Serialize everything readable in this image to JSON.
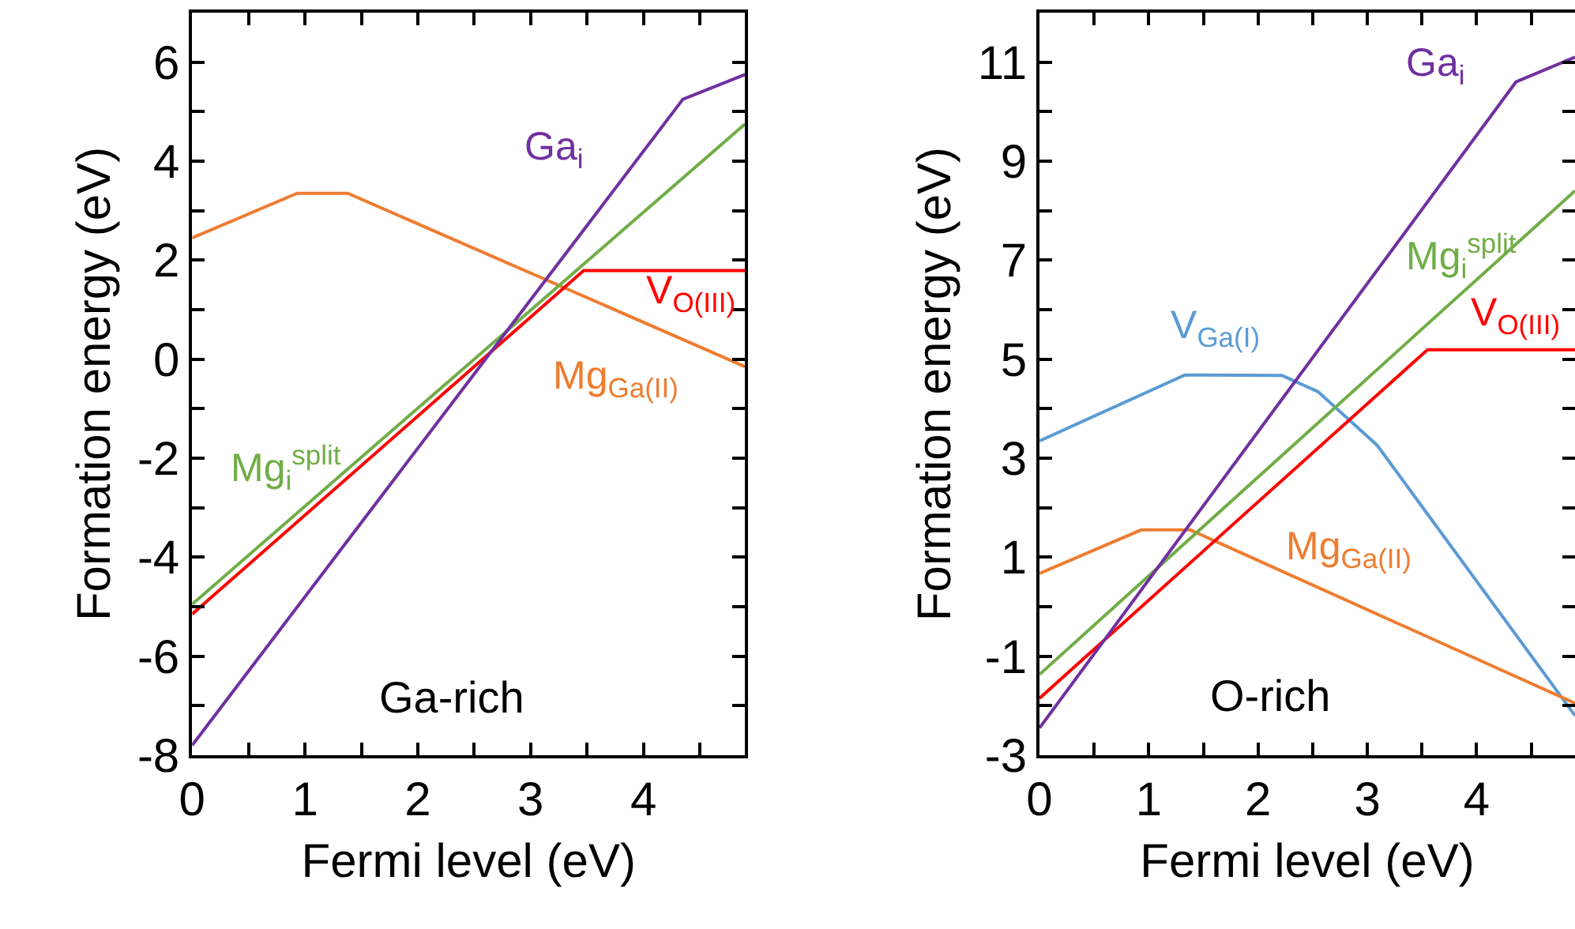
{
  "chart_data": [
    {
      "type": "line",
      "xlabel": "Fermi level (eV)",
      "ylabel": "Formation energy (eV)",
      "xlim": [
        0,
        4.9
      ],
      "ylim": [
        -8,
        7
      ],
      "xticks": [
        0,
        {
          "value": 0.5,
          "label": null
        },
        1,
        {
          "value": 1.5,
          "label": null
        },
        2,
        {
          "value": 2.5,
          "label": null
        },
        3,
        {
          "value": 3.5,
          "label": null
        },
        4,
        {
          "value": 4.5,
          "label": null
        }
      ],
      "yticks": [
        -8,
        {
          "value": -7,
          "label": null
        },
        -6,
        {
          "value": -5,
          "label": null
        },
        -4,
        {
          "value": -3,
          "label": null
        },
        -2,
        {
          "value": -1,
          "label": null
        },
        0,
        {
          "value": 1,
          "label": null
        },
        2,
        {
          "value": 3,
          "label": null
        },
        4,
        {
          "value": 5,
          "label": null
        },
        6,
        {
          "value": 7,
          "label": null
        }
      ],
      "legend": false,
      "marker": "none",
      "line_style": "solid",
      "series": [
        {
          "name": "Mg$_{Ga(II)}$",
          "color": "#ed7d31",
          "x": [
            0,
            0.93,
            1.38,
            4.9
          ],
          "values": [
            2.45,
            3.35,
            3.35,
            -0.15
          ]
        },
        {
          "name": "Mg$_{i}$$^{split}$",
          "color": "#70ad47",
          "x": [
            0,
            4.9
          ],
          "values": [
            -4.95,
            4.75
          ]
        },
        {
          "name": "V$_{O(III)}$",
          "color": "#ff0000",
          "x": [
            0,
            3.47,
            4.9
          ],
          "values": [
            -5.15,
            1.79,
            1.79
          ]
        },
        {
          "name": "Ga$_{i}$",
          "color": "#7030a0",
          "x": [
            0,
            4.35,
            4.9
          ],
          "values": [
            -7.8,
            5.25,
            5.75
          ]
        }
      ],
      "annotations": [
        "Ga-rich"
      ]
    },
    {
      "type": "line",
      "xlabel": "Fermi level (eV)",
      "ylabel": "Formation energy (eV)",
      "xlim": [
        0,
        4.9
      ],
      "ylim": [
        -3,
        12
      ],
      "xticks": [
        0,
        {
          "value": 0.5,
          "label": null
        },
        1,
        {
          "value": 1.5,
          "label": null
        },
        2,
        {
          "value": 2.5,
          "label": null
        },
        3,
        {
          "value": 3.5,
          "label": null
        },
        4,
        {
          "value": 4.5,
          "label": null
        }
      ],
      "yticks": [
        -3,
        {
          "value": -2,
          "label": null
        },
        -1,
        {
          "value": 0,
          "label": null
        },
        1,
        {
          "value": 2,
          "label": null
        },
        3,
        {
          "value": 4,
          "label": null
        },
        5,
        {
          "value": 6,
          "label": null
        },
        7,
        {
          "value": 8,
          "label": null
        },
        9,
        {
          "value": 10,
          "label": null
        },
        11,
        {
          "value": 12,
          "label": null
        }
      ],
      "legend": false,
      "marker": "none",
      "line_style": "solid",
      "series": [
        {
          "name": "V$_{Ga(I)}$",
          "color": "#5b9bd5",
          "x": [
            0,
            1.33,
            2.22,
            2.55,
            3.09,
            4.9
          ],
          "values": [
            3.35,
            4.68,
            4.67,
            4.34,
            3.26,
            -2.2
          ]
        },
        {
          "name": "Mg$_{Ga(II)}$",
          "color": "#ed7d31",
          "x": [
            0,
            0.93,
            1.38,
            4.9
          ],
          "values": [
            0.67,
            1.55,
            1.55,
            -1.95
          ]
        },
        {
          "name": "Mg$_{i}$$^{split}$",
          "color": "#70ad47",
          "x": [
            0,
            4.9
          ],
          "values": [
            -1.37,
            8.4
          ]
        },
        {
          "name": "V$_{O(III)}$",
          "color": "#ff0000",
          "x": [
            0,
            3.55,
            4.9
          ],
          "values": [
            -1.85,
            5.19,
            5.19
          ]
        },
        {
          "name": "Ga$_{i}$",
          "color": "#7030a0",
          "x": [
            0,
            4.36,
            4.9
          ],
          "values": [
            -2.45,
            10.6,
            11.1
          ]
        }
      ],
      "annotations": [
        "O-rich"
      ]
    }
  ]
}
